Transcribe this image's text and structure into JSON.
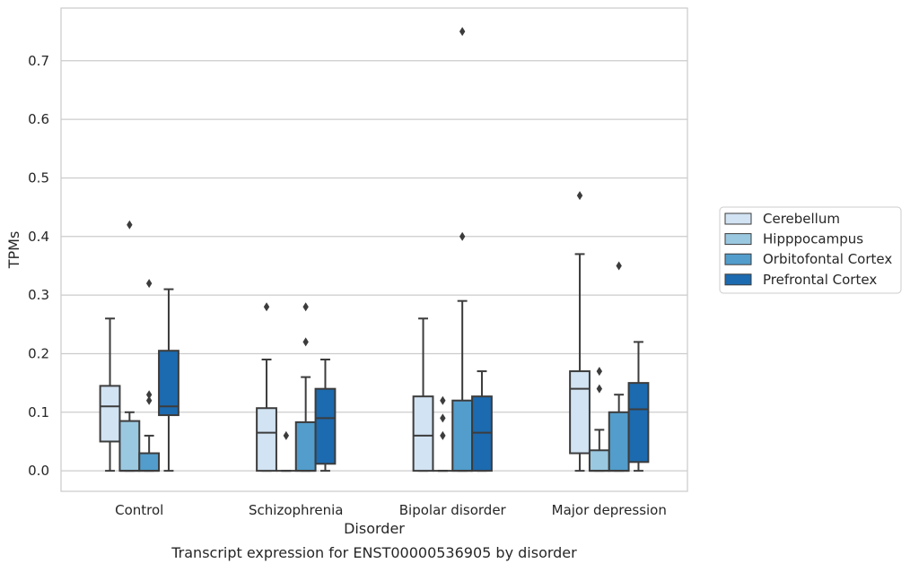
{
  "caption": "Transcript expression for ENST00000536905 by disorder",
  "chart_data": {
    "type": "box",
    "xlabel": "Disorder",
    "ylabel": "TPMs",
    "ylim": [
      -0.035,
      0.79
    ],
    "yticks": [
      0.0,
      0.1,
      0.2,
      0.3,
      0.4,
      0.5,
      0.6,
      0.7
    ],
    "ytick_labels": [
      "0.0",
      "0.1",
      "0.2",
      "0.3",
      "0.4",
      "0.5",
      "0.6",
      "0.7"
    ],
    "grid": true,
    "legend_position": "right",
    "categories": [
      "Control",
      "Schizophrenia",
      "Bipolar disorder",
      "Major depression"
    ],
    "series": [
      {
        "name": "Cerebellum",
        "color": "#d2e3f3",
        "boxes": [
          {
            "whisker_low": 0.0,
            "q1": 0.05,
            "median": 0.11,
            "q3": 0.145,
            "whisker_high": 0.26,
            "outliers": []
          },
          {
            "whisker_low": 0.0,
            "q1": 0.0,
            "median": 0.065,
            "q3": 0.107,
            "whisker_high": 0.19,
            "outliers": [
              0.28
            ]
          },
          {
            "whisker_low": 0.0,
            "q1": 0.0,
            "median": 0.06,
            "q3": 0.127,
            "whisker_high": 0.26,
            "outliers": []
          },
          {
            "whisker_low": 0.0,
            "q1": 0.03,
            "median": 0.14,
            "q3": 0.17,
            "whisker_high": 0.37,
            "outliers": [
              0.47
            ]
          }
        ]
      },
      {
        "name": "Hipppocampus",
        "color": "#9ac8e0",
        "boxes": [
          {
            "whisker_low": 0.0,
            "q1": 0.0,
            "median": 0.0,
            "q3": 0.085,
            "whisker_high": 0.1,
            "outliers": [
              0.42
            ]
          },
          {
            "whisker_low": 0.0,
            "q1": 0.0,
            "median": 0.0,
            "q3": 0.0,
            "whisker_high": 0.0,
            "outliers": [
              0.06
            ]
          },
          {
            "whisker_low": 0.0,
            "q1": 0.0,
            "median": 0.0,
            "q3": 0.0,
            "whisker_high": 0.0,
            "outliers": [
              0.06,
              0.09,
              0.12
            ]
          },
          {
            "whisker_low": 0.0,
            "q1": 0.0,
            "median": 0.0,
            "q3": 0.035,
            "whisker_high": 0.07,
            "outliers": [
              0.14,
              0.17
            ]
          }
        ]
      },
      {
        "name": "Orbitofontal Cortex",
        "color": "#529dcc",
        "boxes": [
          {
            "whisker_low": 0.0,
            "q1": 0.0,
            "median": 0.0,
            "q3": 0.03,
            "whisker_high": 0.06,
            "outliers": [
              0.12,
              0.13,
              0.32
            ]
          },
          {
            "whisker_low": 0.0,
            "q1": 0.0,
            "median": 0.0,
            "q3": 0.083,
            "whisker_high": 0.16,
            "outliers": [
              0.22,
              0.28
            ]
          },
          {
            "whisker_low": 0.0,
            "q1": 0.0,
            "median": 0.0,
            "q3": 0.12,
            "whisker_high": 0.29,
            "outliers": [
              0.4,
              0.75
            ]
          },
          {
            "whisker_low": 0.0,
            "q1": 0.0,
            "median": 0.0,
            "q3": 0.1,
            "whisker_high": 0.13,
            "outliers": [
              0.35
            ]
          }
        ]
      },
      {
        "name": "Prefrontal Cortex",
        "color": "#1c6aaf",
        "boxes": [
          {
            "whisker_low": 0.0,
            "q1": 0.095,
            "median": 0.11,
            "q3": 0.205,
            "whisker_high": 0.31,
            "outliers": []
          },
          {
            "whisker_low": 0.0,
            "q1": 0.012,
            "median": 0.09,
            "q3": 0.14,
            "whisker_high": 0.19,
            "outliers": []
          },
          {
            "whisker_low": 0.0,
            "q1": 0.0,
            "median": 0.065,
            "q3": 0.127,
            "whisker_high": 0.17,
            "outliers": []
          },
          {
            "whisker_low": 0.0,
            "q1": 0.015,
            "median": 0.105,
            "q3": 0.15,
            "whisker_high": 0.22,
            "outliers": []
          }
        ]
      }
    ]
  }
}
